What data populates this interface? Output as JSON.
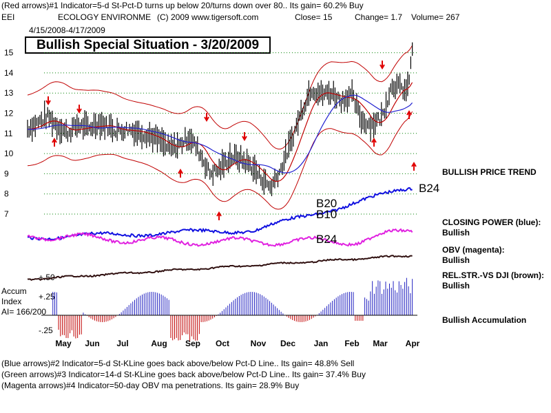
{
  "header": {
    "line1": "(Red arrows)#1 Indicator=5-d St-Pct-D turns up below 20/turns down over 80.. Its gain= 60.2% Buy",
    "ticker": "EEI",
    "company": "ECOLOGY ENVIRONME",
    "copyright": "(C) 2009 www.tigersoft.com",
    "close": "Close=  15",
    "change": "Change= 1.7",
    "volume": "Volume= 267",
    "daterange": "4/15/2008-4/17/2009"
  },
  "title": "Bullish Special Situation - 3/20/2009",
  "side_labels": {
    "trend": "BULLISH PRICE TREND",
    "cp": "CLOSING POWER (blue):",
    "cp_val": "Bullish",
    "obv": "OBV (magenta):",
    "obv_val": "Bullish",
    "rel": "REL.STR.-VS DJI (brown):",
    "rel_val": "Bullish",
    "accum": "Bullish Accumulation"
  },
  "annotations": {
    "b24_top": "B24",
    "b20": "B20",
    "b10": "B10",
    "b24_mid": "B24"
  },
  "accum_labels": {
    "title1": "Accum",
    "title2": "Index",
    "ai": "AI= 166/200",
    "p50": "+.50",
    "p25": "+.25",
    "m25": "-.25"
  },
  "footer": {
    "line1": "(Blue arrows)#2 Indicator=5-d St-KLine goes back above/below Pct-D Line.. Its gain= 48.8% Sell",
    "line2": "(Green arrows)#3 Indicator=14-d St-KLine goes back above/below Pct-D Line.. Its gain= 37.4% Buy",
    "line3": "(Magenta arrows)#4 Indicator=50-day OBV ma penetrations. Its gain= 28.9% Buy"
  },
  "colors": {
    "price": "#000000",
    "band": "#c00000",
    "ma": "#2020d0",
    "closing_power": "#1010e0",
    "obv": "#e020e0",
    "relstr": "#301010",
    "accum_pos": "#2020c0",
    "accum_neg": "#c00000",
    "arrow": "#e00000",
    "grid": "#008000"
  },
  "chart_data": {
    "type": "line",
    "y_ticks": [
      7,
      8,
      9,
      10,
      11,
      12,
      13,
      14,
      15
    ],
    "months": [
      "May",
      "Jun",
      "Jul",
      "Aug",
      "Sep",
      "Oct",
      "Nov",
      "Dec",
      "Jan",
      "Feb",
      "Mar",
      "Apr"
    ],
    "price_close": [
      [
        0,
        11.2
      ],
      [
        0.4,
        11.5
      ],
      [
        0.8,
        11.8
      ],
      [
        1.2,
        11.3
      ],
      [
        1.6,
        11.0
      ],
      [
        2.0,
        11.4
      ],
      [
        2.4,
        11.2
      ],
      [
        2.8,
        11.5
      ],
      [
        3.2,
        11.3
      ],
      [
        3.6,
        11.1
      ],
      [
        4.0,
        11.2
      ],
      [
        4.4,
        11.0
      ],
      [
        4.8,
        10.9
      ],
      [
        5.2,
        10.6
      ],
      [
        5.6,
        10.2
      ],
      [
        6.0,
        10.4
      ],
      [
        6.4,
        10.8
      ],
      [
        6.8,
        10.0
      ],
      [
        7.2,
        9.0
      ],
      [
        7.6,
        9.2
      ],
      [
        8.0,
        9.8
      ],
      [
        8.4,
        9.7
      ],
      [
        8.8,
        9.4
      ],
      [
        9.2,
        8.8
      ],
      [
        9.6,
        8.3
      ],
      [
        10.0,
        9.2
      ],
      [
        10.4,
        10.5
      ],
      [
        10.8,
        12.0
      ],
      [
        11.2,
        13.2
      ],
      [
        11.6,
        12.9
      ],
      [
        12.0,
        13.0
      ],
      [
        12.4,
        12.6
      ],
      [
        12.8,
        12.9
      ],
      [
        13.2,
        11.6
      ],
      [
        13.6,
        11.4
      ],
      [
        14.0,
        11.8
      ],
      [
        14.4,
        13.4
      ],
      [
        14.8,
        13.2
      ],
      [
        15.0,
        13.0
      ],
      [
        15.2,
        15.0
      ]
    ]
  }
}
